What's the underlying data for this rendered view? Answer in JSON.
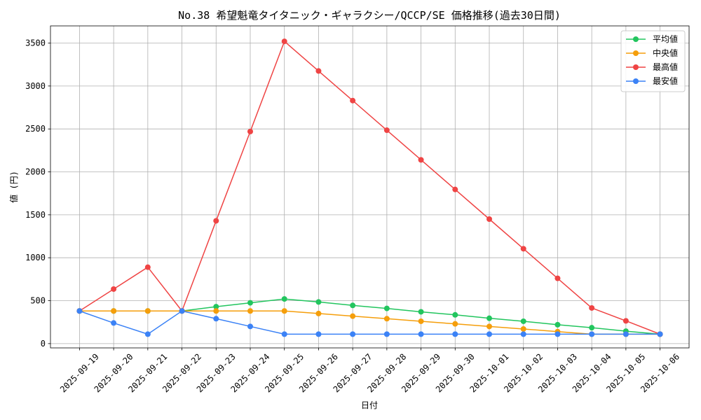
{
  "chart_data": {
    "type": "line",
    "title": "No.38 希望魁竜タイタニック・ギャラクシー/QCCP/SE 価格推移(過去30日間)",
    "xlabel": "日付",
    "ylabel": "値 (円)",
    "categories": [
      "2025-09-19",
      "2025-09-20",
      "2025-09-21",
      "2025-09-22",
      "2025-09-23",
      "2025-09-24",
      "2025-09-25",
      "2025-09-26",
      "2025-09-27",
      "2025-09-28",
      "2025-09-29",
      "2025-09-30",
      "2025-10-01",
      "2025-10-02",
      "2025-10-03",
      "2025-10-04",
      "2025-10-05",
      "2025-10-06"
    ],
    "yticks": [
      0,
      500,
      1000,
      1500,
      2000,
      2500,
      3000,
      3500
    ],
    "ylim": [
      -50,
      3700
    ],
    "grid": true,
    "legend_position": "top-right",
    "series": [
      {
        "name": "平均値",
        "color": "#22c55e",
        "values": [
          380,
          380,
          380,
          380,
          430,
          475,
          520,
          485,
          445,
          410,
          370,
          335,
          295,
          260,
          220,
          185,
          145,
          110
        ]
      },
      {
        "name": "中央値",
        "color": "#f59e0b",
        "values": [
          380,
          380,
          380,
          380,
          380,
          380,
          380,
          350,
          320,
          290,
          260,
          230,
          200,
          170,
          140,
          110,
          110,
          110
        ]
      },
      {
        "name": "最高値",
        "color": "#ef4444",
        "values": [
          380,
          635,
          890,
          380,
          1430,
          2470,
          3520,
          3175,
          2830,
          2485,
          2140,
          1795,
          1450,
          1105,
          760,
          415,
          265,
          110
        ]
      },
      {
        "name": "最安値",
        "color": "#3b82f6",
        "values": [
          380,
          240,
          110,
          380,
          290,
          200,
          110,
          110,
          110,
          110,
          110,
          110,
          110,
          110,
          110,
          110,
          110,
          110
        ]
      }
    ]
  }
}
